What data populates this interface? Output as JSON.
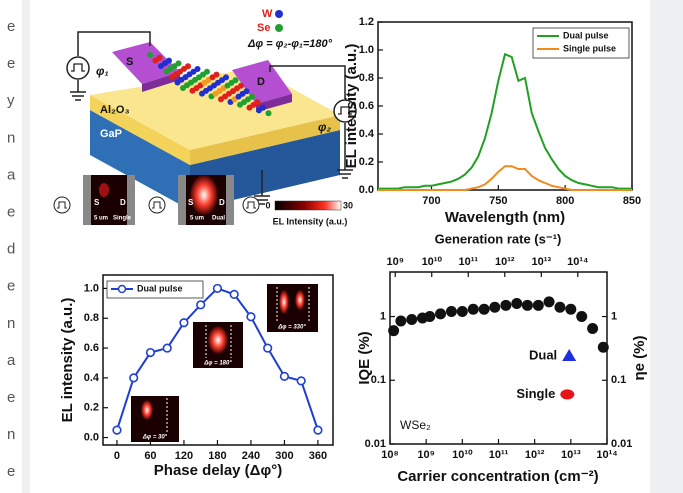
{
  "side_text": [
    "e",
    "e",
    "y",
    "n",
    "a",
    "e",
    "d",
    "e",
    "n",
    "a",
    "e",
    "n",
    "e"
  ],
  "diagram": {
    "w": "W",
    "se": "Se",
    "phase": "Δφ = φ₂-φ₁=180°",
    "phi1": "φ₁",
    "phi2": "φ₂",
    "source": "S",
    "drain": "D",
    "oxide": "Al₂O₃",
    "substrate": "GaP",
    "images": [
      {
        "source": "S",
        "drain": "D",
        "scale": "5 um",
        "label": "Single"
      },
      {
        "source": "S",
        "drain": "D",
        "scale": "5 um",
        "label": "Dual"
      }
    ],
    "colorbar": {
      "min": "0",
      "max": "30",
      "label": "EL Intensity (a.u.)"
    }
  },
  "chart_data": [
    {
      "type": "line",
      "xlabel": "Wavelength (nm)",
      "ylabel": "EL intensity (a.u.)",
      "x": [
        660,
        665,
        670,
        675,
        680,
        685,
        690,
        695,
        700,
        705,
        710,
        715,
        720,
        725,
        730,
        735,
        740,
        745,
        750,
        755,
        760,
        765,
        770,
        775,
        780,
        785,
        790,
        795,
        800,
        805,
        810,
        815,
        820,
        825,
        830,
        835,
        840,
        845,
        850
      ],
      "series": [
        {
          "name": "Dual pulse",
          "color": "#22a022",
          "values": [
            0.01,
            0.01,
            0.01,
            0.01,
            0.02,
            0.02,
            0.02,
            0.03,
            0.03,
            0.04,
            0.05,
            0.06,
            0.08,
            0.11,
            0.16,
            0.24,
            0.37,
            0.55,
            0.78,
            0.97,
            0.95,
            0.78,
            0.8,
            0.55,
            0.42,
            0.3,
            0.22,
            0.15,
            0.1,
            0.07,
            0.05,
            0.04,
            0.03,
            0.02,
            0.02,
            0.02,
            0.01,
            0.01,
            0.01
          ]
        },
        {
          "name": "Single pulse",
          "color": "#f28a1c",
          "values": [
            0,
            0,
            0,
            0,
            0,
            0,
            0,
            0,
            0,
            0,
            0,
            0,
            0,
            0,
            0.01,
            0.02,
            0.04,
            0.08,
            0.13,
            0.17,
            0.17,
            0.15,
            0.15,
            0.1,
            0.07,
            0.05,
            0.03,
            0.02,
            0.01,
            0,
            0,
            0,
            0,
            0,
            0,
            0,
            0,
            0,
            0
          ]
        }
      ],
      "xlim": [
        660,
        850
      ],
      "xticks": [
        700,
        750,
        800,
        850
      ],
      "ylim": [
        0,
        1.2
      ],
      "yticks": [
        {
          "value": 0,
          "label": "0.0"
        },
        0.2,
        0.4,
        0.6,
        0.8,
        {
          "value": 1,
          "label": "1.0"
        },
        1.2
      ],
      "legend": "upper right"
    },
    {
      "type": "line",
      "xlabel": "Phase delay (Δφ°)",
      "ylabel": "EL intensity (a.u.)",
      "x": [
        0,
        30,
        60,
        90,
        120,
        150,
        180,
        210,
        240,
        270,
        300,
        330,
        360
      ],
      "series": [
        {
          "name": "Dual pulse",
          "color": "#1f3fd0",
          "marker": "circle",
          "values": [
            0.05,
            0.4,
            0.57,
            0.6,
            0.77,
            0.89,
            1.0,
            0.96,
            0.81,
            0.6,
            0.41,
            0.38,
            0.05
          ]
        }
      ],
      "xlim": [
        -25,
        387
      ],
      "xticks": [
        0,
        60,
        120,
        180,
        240,
        300,
        360
      ],
      "ylim": [
        -0.05,
        1.09
      ],
      "yticks": [
        {
          "value": 0,
          "label": "0.0"
        },
        0.2,
        0.4,
        0.6,
        0.8,
        {
          "value": 1,
          "label": "1.0"
        }
      ],
      "annotations": [
        "Δφ = 30°",
        "Δφ = 180°",
        "Δφ = 330°"
      ],
      "legend": "upper left"
    },
    {
      "type": "scatter",
      "xlabel": "Carrier concentration (cm⁻²)",
      "x2label": "Generation rate (s⁻¹)",
      "ylabel": "IQE (%)",
      "y2label": "ηe (%)",
      "xlog": true,
      "ylog": true,
      "series": [
        {
          "color": "#111111",
          "marker": "circle",
          "x": [
            126000000.0,
            200000000.0,
            400000000.0,
            790000000.0,
            1260000000.0,
            2500000000.0,
            5000000000.0,
            10000000000.0,
            20000000000.0,
            40000000000.0,
            79000000000.0,
            160000000000.0,
            320000000000.0,
            630000000000.0,
            1260000000000.0,
            2500000000000.0,
            5000000000000.0,
            10000000000000.0,
            20000000000000.0,
            40000000000000.0,
            79000000000000.0
          ],
          "values": [
            0.6,
            0.85,
            0.9,
            0.95,
            1.0,
            1.1,
            1.2,
            1.2,
            1.3,
            1.3,
            1.4,
            1.5,
            1.6,
            1.5,
            1.5,
            1.7,
            1.4,
            1.3,
            1.0,
            0.65,
            0.33
          ]
        },
        {
          "name": "Dual",
          "color": "#1f2fe0",
          "marker": "triangle",
          "axis": "y2",
          "x": [
            9000000000000.0
          ],
          "values": [
            0.24
          ]
        },
        {
          "name": "Single",
          "color": "#e8141a",
          "marker": "ellipse",
          "axis": "y2",
          "x": [
            8000000000000.0
          ],
          "values": [
            0.06
          ]
        }
      ],
      "xlim": [
        100000000.0,
        100000000000000.0
      ],
      "xticks": [
        {
          "value": 100000000.0,
          "label": "10⁸"
        },
        {
          "value": 1000000000.0,
          "label": "10⁹"
        },
        {
          "value": 10000000000.0,
          "label": "10¹⁰"
        },
        {
          "value": 100000000000.0,
          "label": "10¹¹"
        },
        {
          "value": 1000000000000.0,
          "label": "10¹²"
        },
        {
          "value": 10000000000000.0,
          "label": "10¹³"
        },
        {
          "value": 100000000000000.0,
          "label": "10¹⁴"
        }
      ],
      "x2lim": [
        720000000.0,
        630000000000000.0
      ],
      "x2ticks": [
        {
          "value": 1000000000.0,
          "label": "10⁹"
        },
        {
          "value": 10000000000.0,
          "label": "10¹⁰"
        },
        {
          "value": 100000000000.0,
          "label": "10¹¹"
        },
        {
          "value": 1000000000000.0,
          "label": "10¹²"
        },
        {
          "value": 10000000000000.0,
          "label": "10¹³"
        },
        {
          "value": 100000000000000.0,
          "label": "10¹⁴"
        }
      ],
      "ylim": [
        0.01,
        5
      ],
      "yticks": [
        0.01,
        0.1,
        1
      ],
      "y2lim": [
        0.01,
        5
      ],
      "y2ticks": [
        0.01,
        0.1,
        1
      ],
      "annotations": [
        "WSe₂"
      ]
    }
  ]
}
